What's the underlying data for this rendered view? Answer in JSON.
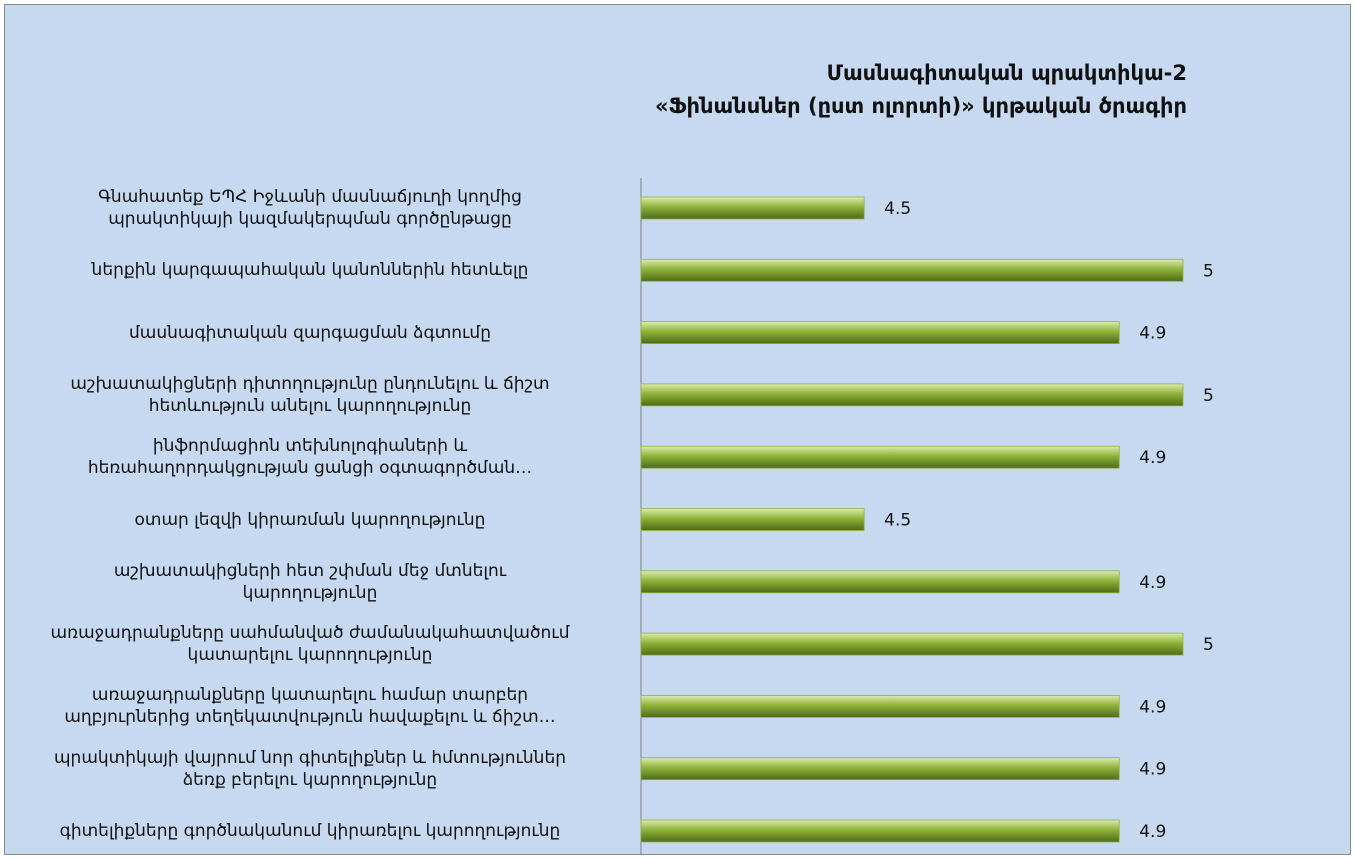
{
  "chart_data": {
    "type": "hbar",
    "title": "Մասնագիտական պրակտիկա-2\n«Ֆինանսներ (ըստ ոլորտի)» կրթական ծրագիր",
    "categories": [
      "Գնահատեք ԵՊՀ Իջևանի մասնաճյուղի կողմից\nպրակտիկայի կազմակերպման  գործընթացը",
      "ներքին կարգապահական կանոններին հետևելը",
      "մասնագիտական զարգացման  ձգտումը",
      "աշխատակիցների դիտողությունը ընդունելու և ճիշտ\nհետևություն անելու կարողությունը",
      "ինֆորմացիոն տեխնոլոգիաների և\nհեռահաղորդակցության ցանցի օգտագործման…",
      "օտար լեզվի կիրառման կարողությունը",
      "աշխատակիցների հետ շփման մեջ մտնելու\nկարողությունը",
      "առաջադրանքները սահմանված ժամանակահատվածում\nկատարելու կարողությունը",
      "առաջադրանքները կատարելու համար տարբեր\nաղբյուրներից տեղեկատվություն հավաքելու և ճիշտ…",
      "պրակտիկայի վայրում նոր գիտելիքներ և հմտություններ\nձեռք բերելու կարողությունը",
      "գիտելիքները գործնականում կիրառելու կարողությունը"
    ],
    "values": [
      4.5,
      5,
      4.9,
      5,
      4.9,
      4.5,
      4.9,
      5,
      4.9,
      4.9,
      4.9
    ],
    "color": "#8fb339",
    "xlim": [
      4.15,
      5
    ]
  }
}
